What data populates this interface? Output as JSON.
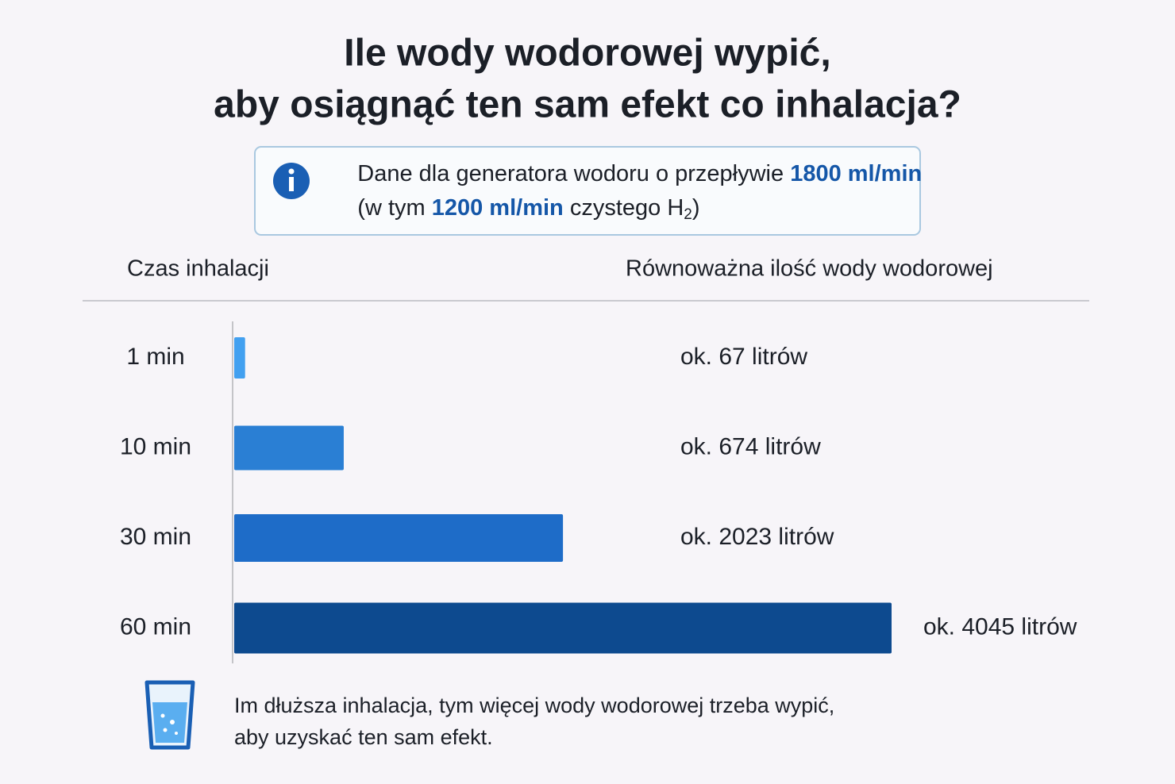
{
  "chart_data": {
    "type": "bar",
    "orientation": "horizontal",
    "title": [
      "Ile wody wodorowej wypić,",
      "aby osiągnąć ten sam efekt co inhalacja?"
    ],
    "info": {
      "line1": [
        "Dane dla generatora wodoru o przepływie ",
        "1800 ml/min"
      ],
      "line2": [
        "(w tym ",
        "1200 ml/min",
        " czystego H",
        "2",
        ")"
      ]
    },
    "category_header": "Czas inhalacji",
    "value_header": "Równoważna ilość wody wodorowej",
    "categories": [
      "1 min",
      "10 min",
      "30 min",
      "60 min"
    ],
    "values": [
      67,
      674,
      2023,
      4045
    ],
    "value_labels": [
      "ok. 67 litrów",
      "ok. 674 litrów",
      "ok. 2023 litrów",
      "ok. 4045 litrów"
    ],
    "colors": [
      "#42a0f0",
      "#2a7fd4",
      "#1e6cc8",
      "#0d4a8f"
    ],
    "note": [
      "Im dłuższa inhalacja, tym więcej wody wodorowej trzeba wypić,",
      "aby uzyskać ten sam efekt."
    ]
  }
}
